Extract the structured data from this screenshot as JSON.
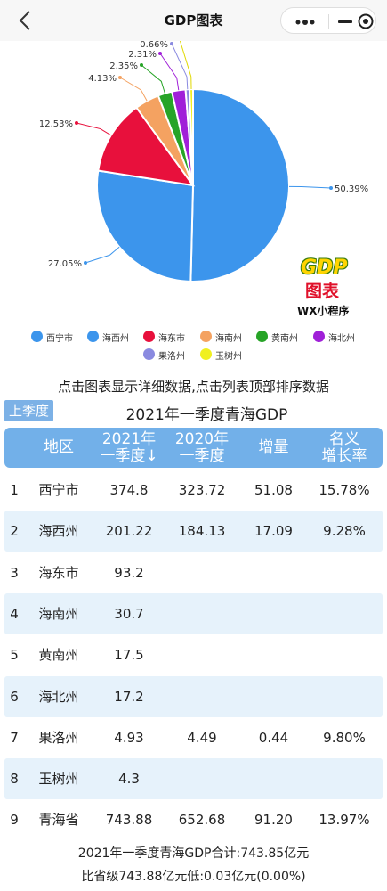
{
  "navbar": {
    "title": "GDP图表"
  },
  "chart_data": {
    "type": "pie",
    "slices": [
      {
        "name": "西宁市",
        "value": 50.39,
        "label": "50.39%",
        "color": "#3c95ec"
      },
      {
        "name": "海西州",
        "value": 27.05,
        "label": "27.05%",
        "color": "#3c95ec"
      },
      {
        "name": "海东市",
        "value": 12.53,
        "label": "12.53%",
        "color": "#e8103c"
      },
      {
        "name": "海南州",
        "value": 4.13,
        "label": "4.13%",
        "color": "#f4a261"
      },
      {
        "name": "黄南州",
        "value": 2.35,
        "label": "2.35%",
        "color": "#27a427"
      },
      {
        "name": "海北州",
        "value": 2.31,
        "label": "2.31%",
        "color": "#a020d8"
      },
      {
        "name": "果洛州",
        "value": 0.66,
        "label": "0.66%",
        "color": "#8a8ae0"
      },
      {
        "name": "玉树州",
        "value": 0.58,
        "label": "0.58%",
        "color": "#f0f020"
      }
    ]
  },
  "logo": {
    "gdp": "GDP",
    "table": "图表",
    "wx": "WX小程序"
  },
  "legend": [
    {
      "label": "西宁市",
      "color": "#3c95ec"
    },
    {
      "label": "海西州",
      "color": "#3c95ec"
    },
    {
      "label": "海东市",
      "color": "#e8103c"
    },
    {
      "label": "海南州",
      "color": "#f4a261"
    },
    {
      "label": "黄南州",
      "color": "#27a427"
    },
    {
      "label": "海北州",
      "color": "#a020d8"
    },
    {
      "label": "果洛州",
      "color": "#8a8ae0"
    },
    {
      "label": "玉树州",
      "color": "#f0f020"
    }
  ],
  "hint": "点击图表显示详细数据,点击列表顶部排序数据",
  "last_quarter_button": "上季度",
  "table_title": "2021年一季度青海GDP",
  "table": {
    "headers": {
      "region": "地区",
      "y2021_line1": "2021年",
      "y2021_line2": "一季度↓",
      "y2020_line1": "2020年",
      "y2020_line2": "一季度",
      "increase": "增量",
      "growth_line1": "名义",
      "growth_line2": "增长率"
    },
    "rows": [
      {
        "idx": "1",
        "region": "西宁市",
        "y2021": "374.8",
        "y2020": "323.72",
        "increase": "51.08",
        "growth": "15.78%"
      },
      {
        "idx": "2",
        "region": "海西州",
        "y2021": "201.22",
        "y2020": "184.13",
        "increase": "17.09",
        "growth": "9.28%"
      },
      {
        "idx": "3",
        "region": "海东市",
        "y2021": "93.2",
        "y2020": "",
        "increase": "",
        "growth": ""
      },
      {
        "idx": "4",
        "region": "海南州",
        "y2021": "30.7",
        "y2020": "",
        "increase": "",
        "growth": ""
      },
      {
        "idx": "5",
        "region": "黄南州",
        "y2021": "17.5",
        "y2020": "",
        "increase": "",
        "growth": ""
      },
      {
        "idx": "6",
        "region": "海北州",
        "y2021": "17.2",
        "y2020": "",
        "increase": "",
        "growth": ""
      },
      {
        "idx": "7",
        "region": "果洛州",
        "y2021": "4.93",
        "y2020": "4.49",
        "increase": "0.44",
        "growth": "9.80%"
      },
      {
        "idx": "8",
        "region": "玉树州",
        "y2021": "4.3",
        "y2020": "",
        "increase": "",
        "growth": ""
      },
      {
        "idx": "9",
        "region": "青海省",
        "y2021": "743.88",
        "y2020": "652.68",
        "increase": "91.20",
        "growth": "13.97%"
      }
    ]
  },
  "summary": {
    "line1": "2021年一季度青海GDP合计:743.85亿元",
    "line2": "比省级743.88亿元低:0.03亿元(0.00%)"
  }
}
